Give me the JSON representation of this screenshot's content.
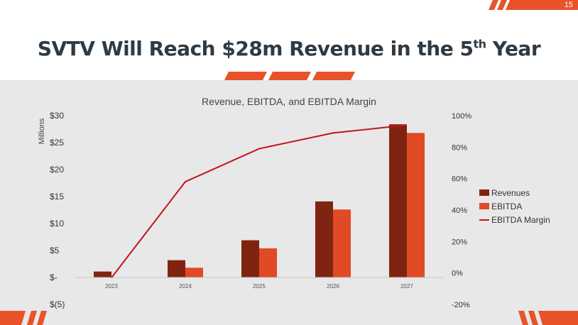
{
  "page_number": "15",
  "title": {
    "main": "SVTV Will Reach $28m Revenue in the 5",
    "superscript": "th",
    "suffix": " Year"
  },
  "colors": {
    "accent": "#e8532a",
    "revenue": "#7f2410",
    "ebitda": "#e04a25",
    "margin_line": "#c0151b",
    "title_text": "#2e3a44"
  },
  "chart_data": {
    "type": "bar",
    "title": "Revenue, EBITDA, and EBITDA Margin",
    "ylabel": "Millions",
    "xlabel": "",
    "categories": [
      "2023",
      "2024",
      "2025",
      "2026",
      "2027"
    ],
    "ylim": [
      -5,
      30
    ],
    "y2lim": [
      -20,
      100
    ],
    "y_ticks": [
      "$30",
      "$25",
      "$20",
      "$15",
      "$10",
      "$5",
      "$-",
      "$(5)"
    ],
    "y_tick_values": [
      30,
      25,
      20,
      15,
      10,
      5,
      0,
      -5
    ],
    "y2_ticks": [
      "100%",
      "80%",
      "60%",
      "40%",
      "20%",
      "0%",
      "-20%"
    ],
    "y2_tick_values": [
      100,
      80,
      60,
      40,
      20,
      0,
      -20
    ],
    "series": [
      {
        "name": "Revenues",
        "type": "bar",
        "values": [
          1.1,
          3.2,
          6.9,
          14.1,
          28.4
        ]
      },
      {
        "name": "EBITDA",
        "type": "bar",
        "values": [
          0,
          1.8,
          5.4,
          12.6,
          26.8
        ]
      },
      {
        "name": "EBITDA Margin",
        "type": "line",
        "axis": "secondary",
        "values": [
          -3,
          58,
          79,
          89,
          94
        ]
      }
    ],
    "legend": [
      "Revenues",
      "EBITDA",
      "EBITDA Margin"
    ],
    "legend_position": "right"
  }
}
